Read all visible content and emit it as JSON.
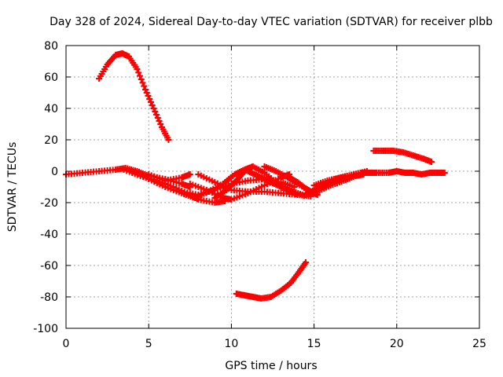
{
  "chart_data": {
    "type": "scatter",
    "title": "Day 328 of 2024, Sidereal Day-to-day VTEC variation (SDTVAR) for receiver plbb",
    "xlabel": "GPS time / hours",
    "ylabel": "SDTVAR / TECUs",
    "xlim": [
      0,
      25
    ],
    "ylim": [
      -100,
      80
    ],
    "xticks": [
      0,
      5,
      10,
      15,
      20,
      25
    ],
    "yticks": [
      -100,
      -80,
      -60,
      -40,
      -20,
      0,
      20,
      40,
      60,
      80
    ],
    "grid": true,
    "marker": "plus",
    "color": "#ff0000",
    "series": [
      {
        "name": "baseline left",
        "points": [
          [
            0,
            -2
          ],
          [
            1,
            -1
          ],
          [
            2,
            0
          ],
          [
            3,
            1
          ],
          [
            3.6,
            2
          ],
          [
            4.3,
            0
          ],
          [
            5,
            -3
          ],
          [
            6,
            -5
          ],
          [
            7,
            -8
          ],
          [
            7.5,
            -10
          ]
        ]
      },
      {
        "name": "arc high",
        "points": [
          [
            2,
            59
          ],
          [
            2.5,
            68
          ],
          [
            3,
            74
          ],
          [
            3.4,
            75
          ],
          [
            3.8,
            73
          ],
          [
            4.3,
            65
          ],
          [
            4.8,
            52
          ],
          [
            5.3,
            40
          ],
          [
            5.8,
            28
          ],
          [
            6.2,
            20
          ]
        ]
      },
      {
        "name": "branch a",
        "points": [
          [
            3.5,
            1
          ],
          [
            4.5,
            -3
          ],
          [
            5.5,
            -6
          ],
          [
            6.5,
            -10
          ],
          [
            7.5,
            -15
          ],
          [
            8,
            -18
          ],
          [
            9,
            -20
          ],
          [
            9.6,
            -19
          ]
        ]
      },
      {
        "name": "branch b",
        "points": [
          [
            4,
            0
          ],
          [
            5,
            -5
          ],
          [
            6,
            -10
          ],
          [
            7,
            -14
          ],
          [
            7.8,
            -17
          ],
          [
            8.6,
            -13
          ],
          [
            9.5,
            -8
          ],
          [
            10.2,
            -2
          ],
          [
            10.8,
            1
          ],
          [
            11.3,
            3
          ]
        ]
      },
      {
        "name": "branch c",
        "points": [
          [
            5,
            -2
          ],
          [
            6,
            -6
          ],
          [
            7,
            -4
          ],
          [
            7.5,
            -2
          ]
        ]
      },
      {
        "name": "branch d",
        "points": [
          [
            7,
            -13
          ],
          [
            8,
            -15
          ],
          [
            9,
            -12
          ],
          [
            10,
            -8
          ],
          [
            11,
            -6
          ],
          [
            12,
            -5
          ],
          [
            13,
            -7
          ],
          [
            13.8,
            -10
          ]
        ]
      },
      {
        "name": "branch e",
        "points": [
          [
            7.5,
            -8
          ],
          [
            8.5,
            -12
          ],
          [
            9.5,
            -17
          ],
          [
            10,
            -18
          ],
          [
            11,
            -14
          ],
          [
            12,
            -9
          ],
          [
            13,
            -4
          ],
          [
            13.5,
            -2
          ]
        ]
      },
      {
        "name": "branch f",
        "points": [
          [
            8,
            -2
          ],
          [
            9,
            -7
          ],
          [
            10,
            -12
          ],
          [
            11,
            -13
          ],
          [
            12,
            -13
          ],
          [
            13,
            -14
          ],
          [
            14,
            -15
          ],
          [
            14.8,
            -16
          ]
        ]
      },
      {
        "name": "branch g",
        "points": [
          [
            9,
            -17
          ],
          [
            9.7,
            -12
          ],
          [
            10.3,
            -6
          ],
          [
            10.8,
            0
          ],
          [
            11.3,
            3
          ],
          [
            12,
            -1
          ],
          [
            12.8,
            -8
          ],
          [
            13.5,
            -12
          ],
          [
            14.3,
            -15
          ]
        ]
      },
      {
        "name": "branch h",
        "points": [
          [
            11,
            0
          ],
          [
            11.6,
            -3
          ],
          [
            12.2,
            -6
          ],
          [
            12.8,
            -9
          ],
          [
            13.4,
            -12
          ],
          [
            14,
            -15
          ]
        ]
      },
      {
        "name": "branch i",
        "points": [
          [
            12,
            3
          ],
          [
            12.7,
            0
          ],
          [
            13.4,
            -4
          ],
          [
            14,
            -8
          ],
          [
            14.8,
            -13
          ],
          [
            15.2,
            -15
          ]
        ]
      },
      {
        "name": "branch j",
        "points": [
          [
            13.5,
            -4
          ],
          [
            14,
            -7
          ],
          [
            14.5,
            -11
          ],
          [
            15,
            -14
          ]
        ]
      },
      {
        "name": "baseline right",
        "points": [
          [
            14.5,
            -15
          ],
          [
            15,
            -12
          ],
          [
            15.6,
            -9
          ],
          [
            16.3,
            -5
          ],
          [
            17,
            -3
          ],
          [
            17.8,
            -1
          ],
          [
            18.3,
            -1
          ],
          [
            18.8,
            -1
          ],
          [
            19.5,
            -1
          ],
          [
            20,
            0
          ],
          [
            20.5,
            -1
          ],
          [
            21,
            -1
          ],
          [
            21.5,
            -2
          ],
          [
            22,
            -1
          ],
          [
            22.5,
            -1
          ],
          [
            22.9,
            -1
          ]
        ]
      },
      {
        "name": "branch k",
        "points": [
          [
            14.5,
            -15
          ],
          [
            15.2,
            -13
          ],
          [
            16,
            -9
          ],
          [
            16.8,
            -6
          ],
          [
            17.5,
            -3
          ],
          [
            18,
            -2
          ]
        ]
      },
      {
        "name": "branch l",
        "points": [
          [
            15,
            -9
          ],
          [
            15.8,
            -6
          ],
          [
            16.6,
            -4
          ],
          [
            17.4,
            -2
          ],
          [
            18.2,
            0
          ]
        ]
      },
      {
        "name": "arc right",
        "points": [
          [
            18.6,
            13
          ],
          [
            19.2,
            13
          ],
          [
            19.8,
            13
          ],
          [
            20.4,
            12
          ],
          [
            21,
            10
          ],
          [
            21.6,
            8
          ],
          [
            22.1,
            6
          ]
        ]
      },
      {
        "name": "arc low",
        "points": [
          [
            10.3,
            -78
          ],
          [
            10.8,
            -79
          ],
          [
            11.3,
            -80
          ],
          [
            11.8,
            -81
          ],
          [
            12.4,
            -80
          ],
          [
            13,
            -76
          ],
          [
            13.6,
            -71
          ],
          [
            14.1,
            -64
          ],
          [
            14.5,
            -58
          ]
        ]
      }
    ]
  }
}
